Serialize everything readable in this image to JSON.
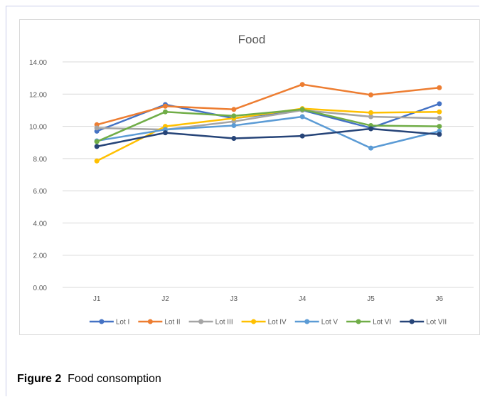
{
  "figure": {
    "label": "Figure 2",
    "caption": "Food consomption"
  },
  "chart_data": {
    "type": "line",
    "title": "Food",
    "xlabel": "",
    "ylabel": "",
    "categories": [
      "J1",
      "J2",
      "J3",
      "J4",
      "J5",
      "J6"
    ],
    "ylim": [
      0,
      14
    ],
    "y_ticks": [
      "0.00",
      "2.00",
      "4.00",
      "6.00",
      "8.00",
      "10.00",
      "12.00",
      "14.00"
    ],
    "grid": true,
    "legend_position": "bottom",
    "series": [
      {
        "name": "Lot I",
        "color": "#4472C4",
        "values": [
          9.7,
          11.35,
          10.5,
          11.0,
          9.9,
          11.4
        ]
      },
      {
        "name": "Lot II",
        "color": "#ED7D31",
        "values": [
          10.1,
          11.25,
          11.05,
          12.6,
          11.95,
          12.4
        ]
      },
      {
        "name": "Lot III",
        "color": "#A5A5A5",
        "values": [
          9.9,
          9.8,
          10.3,
          11.0,
          10.6,
          10.5
        ]
      },
      {
        "name": "Lot IV",
        "color": "#FFC000",
        "values": [
          7.85,
          10.0,
          10.5,
          11.1,
          10.85,
          10.9
        ]
      },
      {
        "name": "Lot V",
        "color": "#5B9BD5",
        "values": [
          9.1,
          9.8,
          10.05,
          10.6,
          8.65,
          9.7
        ]
      },
      {
        "name": "Lot VI",
        "color": "#70AD47",
        "values": [
          9.05,
          10.9,
          10.65,
          11.05,
          10.05,
          10.0
        ]
      },
      {
        "name": "Lot VII",
        "color": "#264478",
        "values": [
          8.75,
          9.6,
          9.25,
          9.4,
          9.85,
          9.5
        ]
      }
    ]
  }
}
